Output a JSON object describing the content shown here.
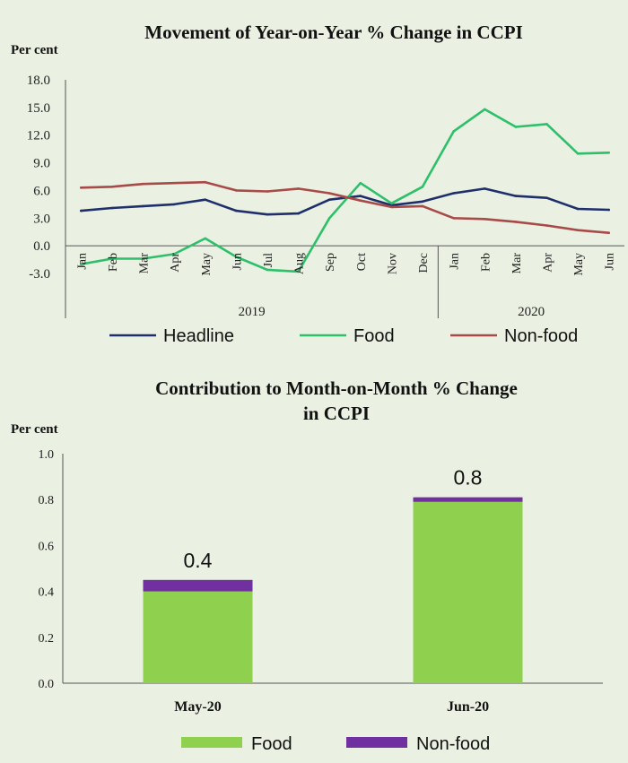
{
  "chart_data": [
    {
      "type": "line",
      "title": "Movement of Year-on-Year % Change in CCPI",
      "ylabel": "Per cent",
      "ylim": [
        -3.0,
        18.0
      ],
      "yticks": [
        "18.0",
        "15.0",
        "12.0",
        "9.0",
        "6.0",
        "3.0",
        "0.0",
        "-3.0"
      ],
      "categories": [
        "Jan",
        "Feb",
        "Mar",
        "Apr",
        "May",
        "Jun",
        "Jul",
        "Aug",
        "Sep",
        "Oct",
        "Nov",
        "Dec",
        "Jan",
        "Feb",
        "Mar",
        "Apr",
        "May",
        "Jun"
      ],
      "year_groups": [
        {
          "label": "2019",
          "count": 12
        },
        {
          "label": "2020",
          "count": 6
        }
      ],
      "series": [
        {
          "name": "Headline",
          "color": "#1f2f6b",
          "values": [
            3.8,
            4.1,
            4.3,
            4.5,
            5.0,
            3.8,
            3.4,
            3.5,
            5.0,
            5.4,
            4.4,
            4.8,
            5.7,
            6.2,
            5.4,
            5.2,
            4.0,
            3.9
          ]
        },
        {
          "name": "Food",
          "color": "#2dbf6a",
          "values": [
            -2.0,
            -1.4,
            -1.4,
            -0.9,
            0.8,
            -1.2,
            -2.6,
            -2.8,
            3.0,
            6.8,
            4.6,
            6.4,
            12.4,
            14.8,
            12.9,
            13.2,
            10.0,
            10.1
          ]
        },
        {
          "name": "Non-food",
          "color": "#a84a48",
          "values": [
            6.3,
            6.4,
            6.7,
            6.8,
            6.9,
            6.0,
            5.9,
            6.2,
            5.7,
            4.9,
            4.2,
            4.3,
            3.0,
            2.9,
            2.6,
            2.2,
            1.7,
            1.4
          ]
        }
      ]
    },
    {
      "type": "bar",
      "stacked": true,
      "title_lines": [
        "Contribution to Month-on-Month % Change",
        "in CCPI"
      ],
      "ylabel": "Per cent",
      "ylim": [
        0.0,
        1.0
      ],
      "yticks": [
        "1.0",
        "0.8",
        "0.6",
        "0.4",
        "0.2",
        "0.0"
      ],
      "categories": [
        "May-20",
        "Jun-20"
      ],
      "series": [
        {
          "name": "Food",
          "color": "#8fd14f",
          "values": [
            0.4,
            0.79
          ]
        },
        {
          "name": "Non-food",
          "color": "#7030a0",
          "values": [
            0.05,
            0.02
          ]
        }
      ],
      "totals": [
        "0.4",
        "0.8"
      ]
    }
  ]
}
